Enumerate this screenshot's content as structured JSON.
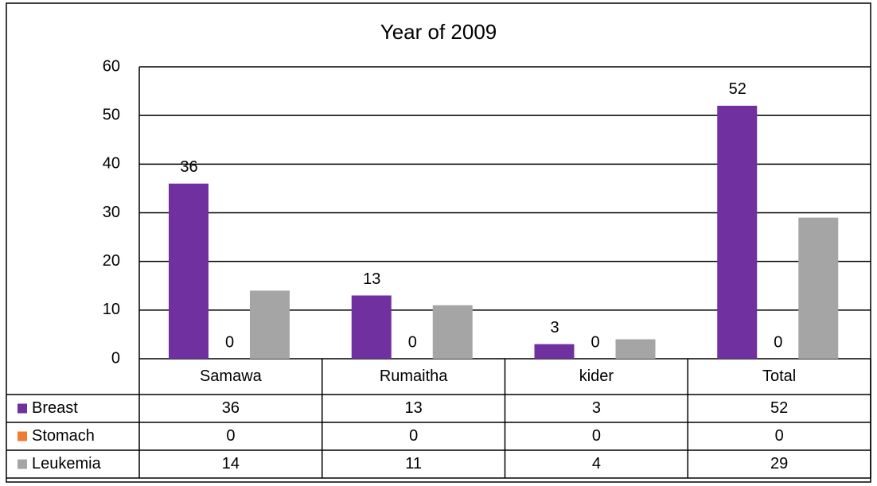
{
  "chart_data": {
    "type": "bar",
    "title": "Year of 2009",
    "categories": [
      "Samawa",
      "Rumaitha",
      "kider",
      "Total"
    ],
    "series": [
      {
        "name": "Breast",
        "color": "#7030a0",
        "values": [
          36,
          13,
          3,
          52
        ],
        "data_labels": true
      },
      {
        "name": "Stomach",
        "color": "#ed7d31",
        "values": [
          0,
          0,
          0,
          0
        ],
        "data_labels": true
      },
      {
        "name": "Leukemia",
        "color": "#a5a5a5",
        "values": [
          14,
          11,
          4,
          29
        ],
        "data_labels": false
      }
    ],
    "ylim": [
      0,
      60
    ],
    "yticks": [
      0,
      10,
      20,
      30,
      40,
      50,
      60
    ],
    "grid": true,
    "data_table": true
  }
}
